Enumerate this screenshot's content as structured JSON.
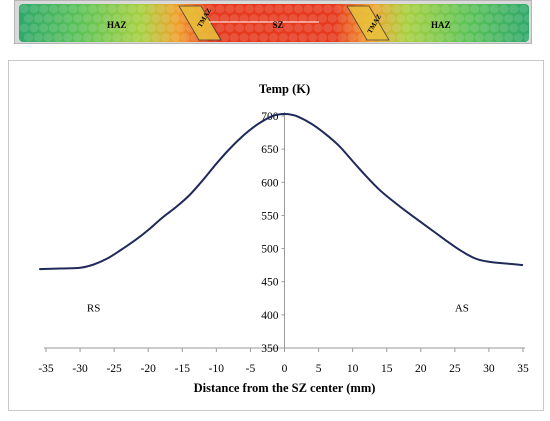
{
  "micrograph": {
    "zone_labels": [
      "HAZ",
      "TMAZ",
      "SZ",
      "TMAZ",
      "HAZ"
    ]
  },
  "colors": {
    "curve": "#1f2a5a",
    "axis": "#9a9a9a",
    "haz": "#55c15a",
    "tmaz": "#e8c23a",
    "sz": "#e22b1e"
  },
  "chart_data": {
    "type": "line",
    "title": "",
    "ylabel": "Temp (K)",
    "xlabel": "Distance from the SZ center (mm)",
    "xlim": [
      -35,
      35
    ],
    "ylim": [
      350,
      700
    ],
    "x_ticks": [
      "-35",
      "-30",
      "-25",
      "-20",
      "-15",
      "-10",
      "-5",
      "0",
      "5",
      "10",
      "15",
      "20",
      "25",
      "30",
      "35"
    ],
    "y_ticks": [
      "350",
      "400",
      "450",
      "500",
      "550",
      "600",
      "650",
      "700"
    ],
    "grid": false,
    "annotations": [
      "RS",
      "AS"
    ],
    "series": [
      {
        "x": [
          -36,
          -33,
          -30,
          -28,
          -26,
          -24,
          -22,
          -20,
          -18,
          -16,
          -14,
          -12,
          -10,
          -8,
          -6,
          -4,
          -2,
          -1,
          0,
          1,
          2,
          4,
          6,
          8,
          10,
          12,
          14,
          16,
          18,
          20,
          22,
          24,
          26,
          28,
          30,
          32,
          35
        ],
        "y": [
          469,
          470,
          471,
          476,
          485,
          498,
          512,
          528,
          546,
          562,
          580,
          603,
          628,
          651,
          671,
          687,
          699,
          702,
          703,
          702,
          699,
          688,
          673,
          655,
          632,
          609,
          588,
          571,
          555,
          540,
          525,
          510,
          496,
          485,
          480,
          478,
          475
        ]
      }
    ]
  }
}
